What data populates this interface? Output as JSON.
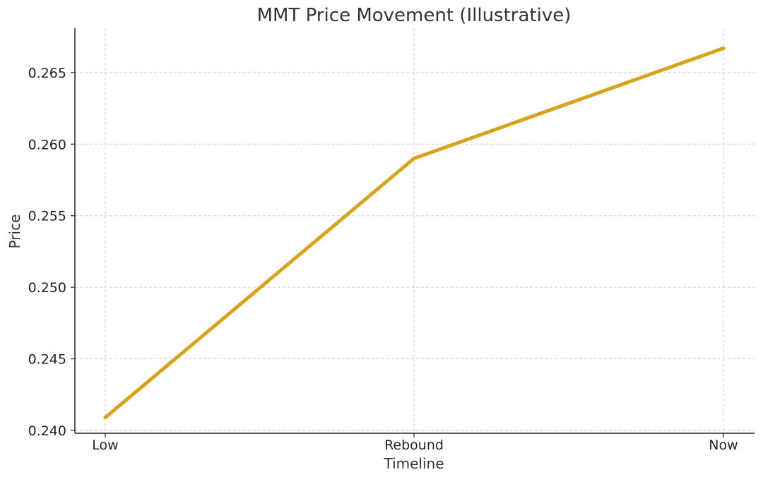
{
  "chart_data": {
    "type": "line",
    "title": "MMT Price Movement (Illustrative)",
    "xlabel": "Timeline",
    "ylabel": "Price",
    "categories": [
      "Low",
      "Rebound",
      "Now"
    ],
    "series": [
      {
        "values": [
          0.2409,
          0.259,
          0.2667
        ],
        "color": "#d9a21b"
      }
    ],
    "ylim": [
      0.2398,
      0.2681
    ],
    "yticks": [
      0.24,
      0.245,
      0.25,
      0.255,
      0.26,
      0.265
    ],
    "ytick_labels": [
      "0.240",
      "0.245",
      "0.250",
      "0.255",
      "0.260",
      "0.265"
    ],
    "grid": true,
    "legend": "none"
  }
}
